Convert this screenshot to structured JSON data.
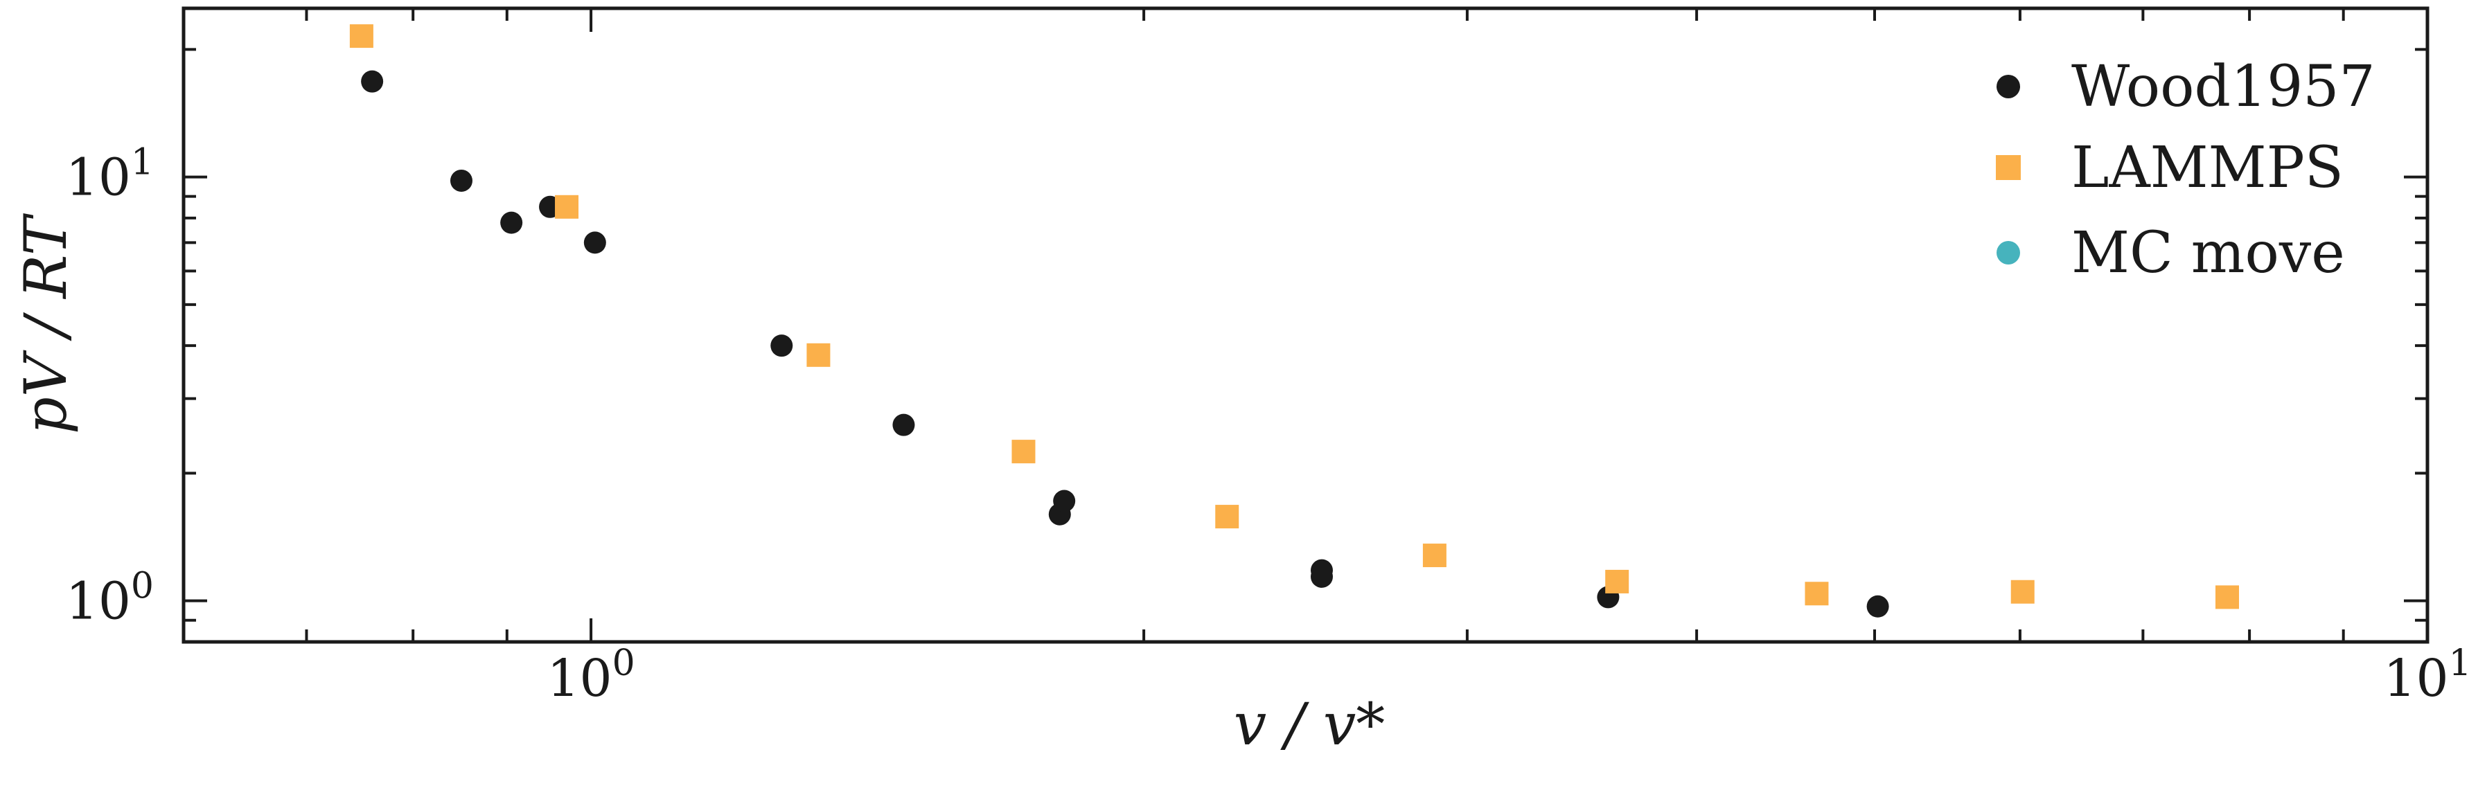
{
  "chart_data": {
    "type": "scatter",
    "xlabel": "v / v*",
    "ylabel": "pV / RT",
    "xscale": "log",
    "yscale": "log",
    "xlim": [
      0.6,
      10
    ],
    "ylim": [
      0.8,
      25
    ],
    "x_tick_labels": [
      {
        "value": 1,
        "base": "10",
        "exp": "0"
      },
      {
        "value": 10,
        "base": "10",
        "exp": "1"
      }
    ],
    "y_tick_labels": [
      {
        "value": 1,
        "base": "10",
        "exp": "0"
      },
      {
        "value": 10,
        "base": "10",
        "exp": "1"
      }
    ],
    "grid": false,
    "legend_position": "top-right",
    "series": [
      {
        "name": "Wood1957",
        "marker": "circle",
        "color": "#1a1a1a",
        "points": [
          {
            "x": 0.76,
            "y": 16.8
          },
          {
            "x": 0.85,
            "y": 9.8
          },
          {
            "x": 0.905,
            "y": 7.8
          },
          {
            "x": 0.95,
            "y": 8.5
          },
          {
            "x": 1.005,
            "y": 7.0
          },
          {
            "x": 1.27,
            "y": 4.0
          },
          {
            "x": 1.48,
            "y": 2.6
          },
          {
            "x": 1.8,
            "y": 1.6
          },
          {
            "x": 1.81,
            "y": 1.72
          },
          {
            "x": 2.5,
            "y": 1.14
          },
          {
            "x": 2.5,
            "y": 1.18
          },
          {
            "x": 3.58,
            "y": 1.02
          },
          {
            "x": 5.02,
            "y": 0.97
          }
        ]
      },
      {
        "name": "LAMMPS",
        "marker": "square",
        "color": "#fbb04a",
        "points": [
          {
            "x": 0.75,
            "y": 21.5
          },
          {
            "x": 0.97,
            "y": 8.5
          },
          {
            "x": 1.33,
            "y": 3.8
          },
          {
            "x": 1.72,
            "y": 2.25
          },
          {
            "x": 2.22,
            "y": 1.58
          },
          {
            "x": 2.88,
            "y": 1.28
          },
          {
            "x": 3.62,
            "y": 1.11
          },
          {
            "x": 4.65,
            "y": 1.04
          },
          {
            "x": 6.02,
            "y": 1.05
          },
          {
            "x": 7.78,
            "y": 1.02
          }
        ]
      },
      {
        "name": "MC move",
        "marker": "circle",
        "color": "#46b3bd",
        "points": []
      }
    ]
  }
}
